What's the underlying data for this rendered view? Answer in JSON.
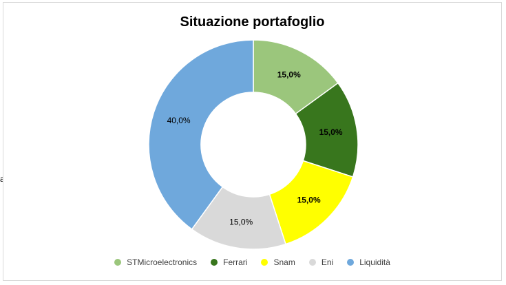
{
  "stray_text": "a",
  "chart_data": {
    "type": "donut",
    "title": "Situazione portafoglio",
    "legend_position": "bottom",
    "categories": [
      "STMicroelectronics",
      "Ferrari",
      "Snam",
      "Eni",
      "Liquidità"
    ],
    "values": [
      15.0,
      15.0,
      15.0,
      15.0,
      40.0
    ],
    "labels": [
      "15,0%",
      "15,0%",
      "15,0%",
      "15,0%",
      "40,0%"
    ],
    "colors": [
      "#9bc67c",
      "#38761d",
      "#ffff00",
      "#d9d9d9",
      "#6fa8dc"
    ],
    "label_bold": [
      true,
      true,
      true,
      false,
      false
    ]
  }
}
